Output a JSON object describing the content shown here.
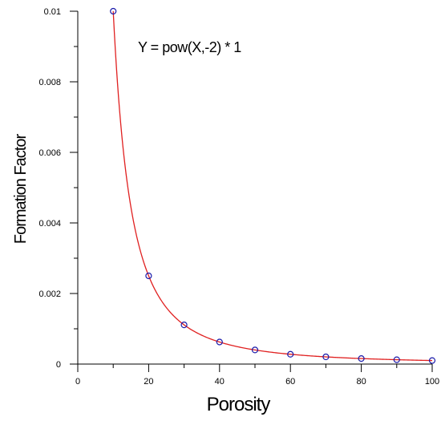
{
  "chart_data": {
    "type": "scatter",
    "title": "",
    "xlabel": "Porosity",
    "ylabel": "Formation Factor",
    "annotation": "Y = pow(X,-2) * 1",
    "xlim": [
      0,
      100
    ],
    "ylim": [
      0,
      0.01
    ],
    "x_ticks": [
      0,
      20,
      40,
      60,
      80,
      100
    ],
    "x_tick_labels": [
      "0",
      "20",
      "40",
      "60",
      "80",
      "100"
    ],
    "y_ticks": [
      0,
      0.002,
      0.004,
      0.006,
      0.008,
      0.01
    ],
    "y_tick_labels": [
      "0",
      "0.002",
      "0.004",
      "0.006",
      "0.008",
      "0.01"
    ],
    "x_minor_step": 10,
    "y_minor_step": 0.001,
    "grid": false,
    "series": [
      {
        "kind": "points",
        "marker": "circle",
        "color": "#1a1aaa",
        "x": [
          10,
          20,
          30,
          40,
          50,
          60,
          70,
          80,
          90,
          100
        ],
        "y": [
          0.01,
          0.0025,
          0.00111,
          0.000625,
          0.0004,
          0.000278,
          0.000204,
          0.000156,
          0.000123,
          0.0001
        ]
      },
      {
        "kind": "fit-line",
        "color": "#e02020",
        "formula": "y = x^-2",
        "x_range": [
          10,
          100
        ]
      }
    ]
  }
}
